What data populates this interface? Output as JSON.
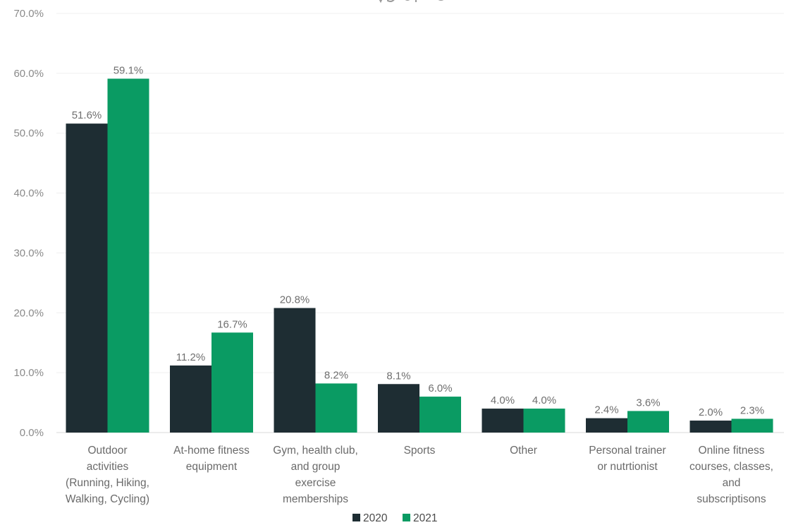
{
  "chart_data": {
    "type": "bar",
    "categories": [
      [
        "Outdoor",
        "activities",
        "(Running, Hiking,",
        "Walking, Cycling)"
      ],
      [
        "At-home fitness",
        "equipment"
      ],
      [
        "Gym, health club,",
        "and group",
        "exercise",
        "memberships"
      ],
      [
        "Sports"
      ],
      [
        "Other"
      ],
      [
        "Personal trainer",
        "or nutrtionist"
      ],
      [
        "Online fitness",
        "courses, classes,",
        "and",
        "subscriptisons"
      ]
    ],
    "series": [
      {
        "name": "2020",
        "color": "#1e2d33",
        "values": [
          51.6,
          11.2,
          20.8,
          8.1,
          4.0,
          2.4,
          2.0
        ],
        "labels": [
          "51.6%",
          "11.2%",
          "20.8%",
          "8.1%",
          "4.0%",
          "2.4%",
          "2.0%"
        ]
      },
      {
        "name": "2021",
        "color": "#0a9b63",
        "values": [
          59.1,
          16.7,
          8.2,
          6.0,
          4.0,
          3.6,
          2.3
        ],
        "labels": [
          "59.1%",
          "16.7%",
          "8.2%",
          "6.0%",
          "4.0%",
          "3.6%",
          "2.3%"
        ]
      }
    ],
    "ylim": [
      0,
      70
    ],
    "yticks": [
      "0.0%",
      "10.0%",
      "20.0%",
      "30.0%",
      "40.0%",
      "50.0%",
      "60.0%",
      "70.0%"
    ],
    "grid": true,
    "legend_position": "bottom-center"
  }
}
